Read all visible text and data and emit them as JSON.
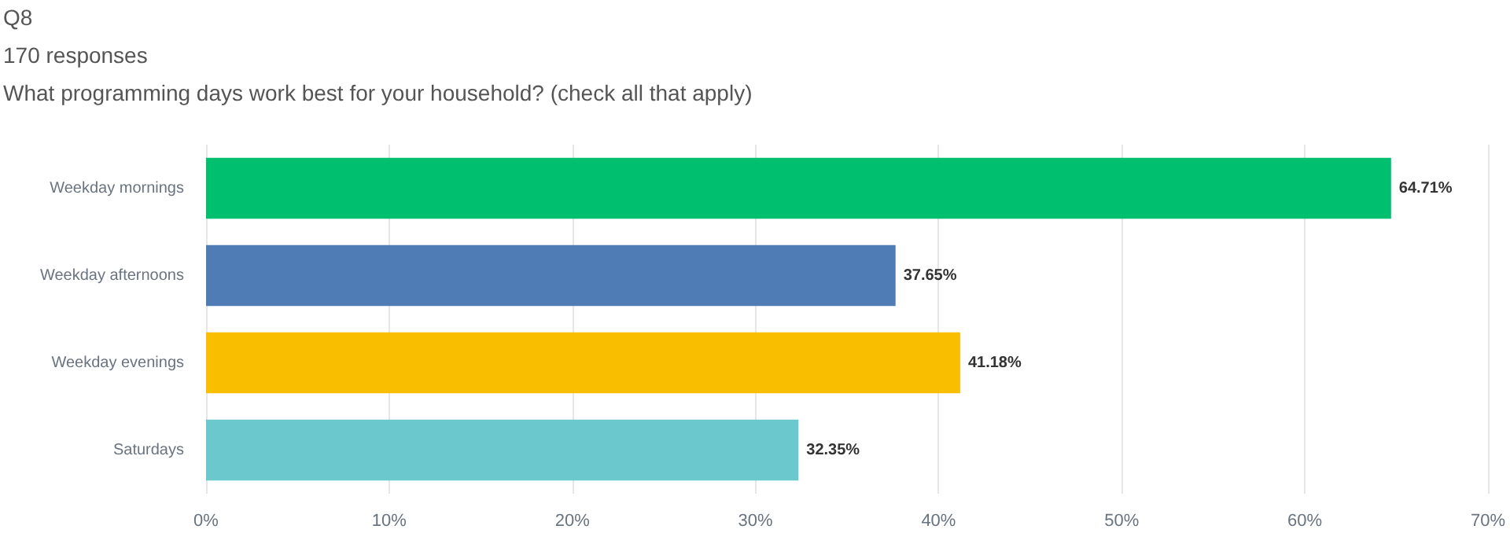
{
  "chart_data": {
    "type": "bar",
    "orientation": "horizontal",
    "title": "Q8",
    "subtitle": "170 responses",
    "annotations": [
      "What programming days work best for your household? (check all that apply)"
    ],
    "categories": [
      "Weekday mornings",
      "Weekday afternoons",
      "Weekday evenings",
      "Saturdays"
    ],
    "values": [
      64.71,
      37.65,
      41.18,
      32.35
    ],
    "colors": [
      "#00bf6f",
      "#507cb6",
      "#f9be00",
      "#6bc8cd"
    ],
    "value_labels": [
      "64.71%",
      "37.65%",
      "41.18%",
      "32.35%"
    ],
    "xlim": [
      0,
      70
    ],
    "xticks": [
      {
        "value": 0,
        "label": "0%"
      },
      {
        "value": 10,
        "label": "10%"
      },
      {
        "value": 20,
        "label": "20%"
      },
      {
        "value": 30,
        "label": "30%"
      },
      {
        "value": 40,
        "label": "40%"
      },
      {
        "value": 50,
        "label": "50%"
      },
      {
        "value": 60,
        "label": "60%"
      },
      {
        "value": 70,
        "label": "70%"
      }
    ],
    "grid": "x"
  }
}
